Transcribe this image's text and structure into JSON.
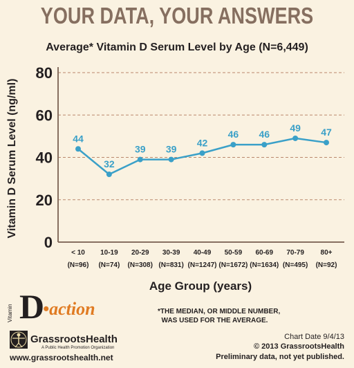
{
  "heading": "YOUR DATA, YOUR ANSWERS",
  "footnote": "*THE MEDIAN, OR MIDDLE NUMBER,\n  WAS USED FOR THE AVERAGE.",
  "chart_date": "Chart Date 9/4/13",
  "copyright": "© 2013 GrassrootsHealth",
  "preliminary": "Preliminary data, not yet published.",
  "logos": {
    "vitamin_small": "Vitamin",
    "vitamin_D": "D",
    "action": "•action",
    "org_name": "GrassrootsHealth",
    "org_tagline": "A Public Health Promotion Organization",
    "org_url": "www.grassrootshealth.net"
  },
  "colors": {
    "line": "#3aa0c8",
    "grid": "#b9876c",
    "axis": "#866f60",
    "heading": "#866f60",
    "action": "#e07b22"
  },
  "chart_data": {
    "type": "line",
    "title": "Average* Vitamin D Serum Level by Age (N=6,449)",
    "xlabel": "Age Group (years)",
    "ylabel": "Vitamin D Serum Level (ng/ml)",
    "categories": [
      "< 10",
      "10-19",
      "20-29",
      "30-39",
      "40-49",
      "50-59",
      "60-69",
      "70-79",
      "80+"
    ],
    "category_counts": [
      "(N=96)",
      "(N=74)",
      "(N=308)",
      "(N=831)",
      "(N=1247)",
      "(N=1672)",
      "(N=1634)",
      "(N=495)",
      "(N=92)"
    ],
    "values": [
      44,
      32,
      39,
      39,
      42,
      46,
      46,
      49,
      47
    ],
    "data_labels": [
      "44",
      "32",
      "39",
      "39",
      "42",
      "46",
      "46",
      "49",
      "47"
    ],
    "ylim": [
      0,
      80
    ],
    "yticks": [
      "0",
      "20",
      "40",
      "60",
      "80"
    ],
    "grid": "horizontal dashed"
  }
}
